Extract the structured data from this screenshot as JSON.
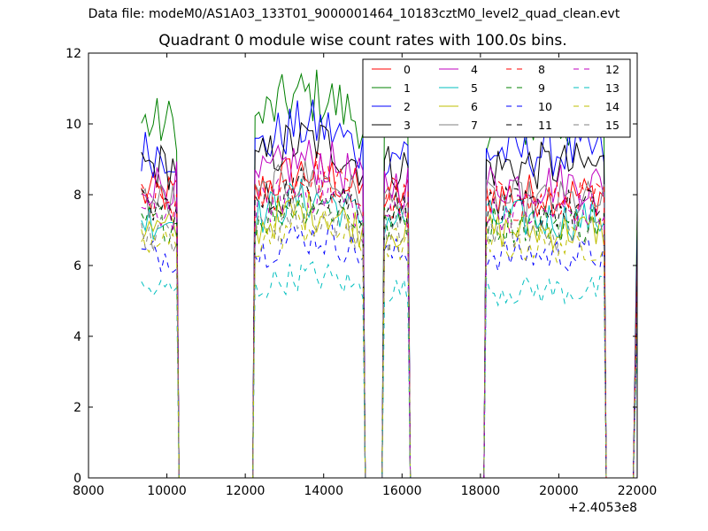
{
  "figure": {
    "suptitle": "Data file: modeM0/AS1A03_133T01_9000001464_10183cztM0_level2_quad_clean.evt"
  },
  "chart_data": {
    "type": "line",
    "title": "Quadrant 0 module wise count rates with 100.0s bins.",
    "xlabel": "",
    "ylabel": "",
    "xlim": [
      8000,
      22000
    ],
    "ylim": [
      0,
      12
    ],
    "x_offset_label": "+2.4053e8",
    "xticks": [
      "8000",
      "10000",
      "12000",
      "14000",
      "16000",
      "18000",
      "20000",
      "22000"
    ],
    "yticks": [
      "0",
      "2",
      "4",
      "6",
      "8",
      "10",
      "12"
    ],
    "grid": false,
    "legend": {
      "placement": "top-right",
      "columns": 4
    },
    "segments": [
      [
        9350,
        10250
      ],
      [
        12250,
        15000
      ],
      [
        15550,
        16150
      ],
      [
        18150,
        21150
      ]
    ],
    "series": [
      {
        "name": "0",
        "color": "#ff0000",
        "style": "solid",
        "level": 8.0
      },
      {
        "name": "1",
        "color": "#008000",
        "style": "solid",
        "level": 10.0
      },
      {
        "name": "2",
        "color": "#0000ff",
        "style": "solid",
        "level": 9.2
      },
      {
        "name": "3",
        "color": "#000000",
        "style": "solid",
        "level": 8.8
      },
      {
        "name": "4",
        "color": "#bf00bf",
        "style": "solid",
        "level": 8.3
      },
      {
        "name": "5",
        "color": "#00bfbf",
        "style": "solid",
        "level": 7.3
      },
      {
        "name": "6",
        "color": "#bfbf00",
        "style": "solid",
        "level": 7.0
      },
      {
        "name": "7",
        "color": "#808080",
        "style": "solid",
        "level": 7.8
      },
      {
        "name": "8",
        "color": "#ff0000",
        "style": "dashed",
        "level": 7.8
      },
      {
        "name": "9",
        "color": "#008000",
        "style": "dashed",
        "level": 7.2
      },
      {
        "name": "10",
        "color": "#0000ff",
        "style": "dashed",
        "level": 6.3
      },
      {
        "name": "11",
        "color": "#000000",
        "style": "dashed",
        "level": 7.6
      },
      {
        "name": "12",
        "color": "#bf00bf",
        "style": "dashed",
        "level": 7.5
      },
      {
        "name": "13",
        "color": "#00bfbf",
        "style": "dashed",
        "level": 5.3
      },
      {
        "name": "14",
        "color": "#bfbf00",
        "style": "dashed",
        "level": 6.6
      },
      {
        "name": "15",
        "color": "#808080",
        "style": "dashed",
        "level": 6.9
      }
    ]
  }
}
